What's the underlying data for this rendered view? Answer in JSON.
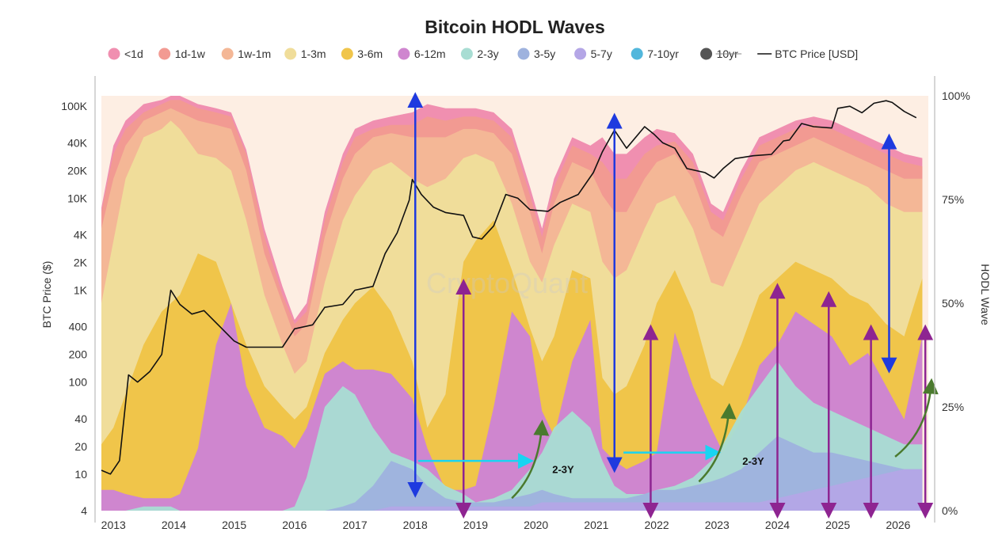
{
  "chart_data": {
    "type": "area",
    "title": "Bitcoin HODL Waves",
    "ylabel_left": "BTC Price ($)",
    "ylabel_right": "HODL Wave",
    "watermark": "CryptoQuant",
    "y_left_scale": "log",
    "y_left_range": [
      4,
      130000
    ],
    "y_right_range": [
      0,
      100
    ],
    "x_range": [
      2012.8,
      2026.5
    ],
    "grid": false,
    "legend_placement": "top",
    "x_ticks": [
      "2013",
      "2014",
      "2015",
      "2016",
      "2017",
      "2018",
      "2019",
      "2020",
      "2021",
      "2022",
      "2023",
      "2024",
      "2025",
      "2026"
    ],
    "x_tick_values": [
      2013,
      2014,
      2015,
      2016,
      2017,
      2018,
      2019,
      2020,
      2021,
      2022,
      2023,
      2024,
      2025,
      2026
    ],
    "y_left_ticks": [
      "100K",
      "40K",
      "20K",
      "10K",
      "4K",
      "2K",
      "1K",
      "400",
      "200",
      "100",
      "40",
      "20",
      "10",
      "4"
    ],
    "y_left_tick_values": [
      100000,
      40000,
      20000,
      10000,
      4000,
      2000,
      1000,
      400,
      200,
      100,
      40,
      20,
      10,
      4
    ],
    "y_right_ticks": [
      "100%",
      "75%",
      "50%",
      "25%",
      "0%"
    ],
    "y_right_tick_values": [
      100,
      75,
      50,
      25,
      0
    ],
    "legend": [
      {
        "label": "<1d",
        "color": "#f08fb0",
        "style": "normal"
      },
      {
        "label": "1d-1w",
        "color": "#f29a92",
        "style": "normal"
      },
      {
        "label": "1w-1m",
        "color": "#f4b796",
        "style": "normal"
      },
      {
        "label": "1-3m",
        "color": "#f0dd9a",
        "style": "normal"
      },
      {
        "label": "3-6m",
        "color": "#f0c54a",
        "style": "normal"
      },
      {
        "label": "6-12m",
        "color": "#cf86cf",
        "style": "normal"
      },
      {
        "label": "2-3y",
        "color": "#a8ddd3",
        "style": "normal"
      },
      {
        "label": "3-5y",
        "color": "#9eb2de",
        "style": "normal"
      },
      {
        "label": "5-7y",
        "color": "#b4a6e6",
        "style": "normal"
      },
      {
        "label": "7-10yr",
        "color": "#52b7dc",
        "style": "normal"
      },
      {
        "label": "10yr",
        "color": "#555555",
        "style": "strike"
      },
      {
        "label": "BTC Price [USD]",
        "color": "#111111",
        "style": "line"
      }
    ],
    "x": [
      2012.8,
      2013.0,
      2013.2,
      2013.5,
      2013.8,
      2013.95,
      2014.1,
      2014.4,
      2014.7,
      2014.95,
      2015.2,
      2015.5,
      2015.8,
      2016.0,
      2016.2,
      2016.5,
      2016.8,
      2017.0,
      2017.3,
      2017.6,
      2017.95,
      2018.2,
      2018.5,
      2018.8,
      2019.0,
      2019.3,
      2019.6,
      2019.9,
      2020.1,
      2020.3,
      2020.6,
      2020.9,
      2021.1,
      2021.3,
      2021.5,
      2021.8,
      2022.0,
      2022.3,
      2022.6,
      2022.9,
      2023.1,
      2023.4,
      2023.7,
      2024.0,
      2024.3,
      2024.6,
      2024.9,
      2025.2,
      2025.5,
      2025.8,
      2026.1,
      2026.4
    ],
    "series": [
      {
        "name": "6-12m",
        "color": "#cf86cf",
        "values": [
          5,
          5,
          4,
          3,
          3,
          3,
          4,
          15,
          40,
          50,
          30,
          20,
          18,
          15,
          20,
          33,
          36,
          34,
          34,
          33,
          27,
          15,
          5,
          5,
          6,
          25,
          48,
          42,
          24,
          18,
          36,
          46,
          15,
          12,
          10,
          12,
          14,
          43,
          30,
          20,
          14,
          22,
          35,
          40,
          48,
          45,
          42,
          35,
          38,
          30,
          22,
          42
        ]
      },
      {
        "name": "3-6m",
        "color": "#f0c54a",
        "values": [
          16,
          20,
          28,
          40,
          48,
          50,
          52,
          62,
          60,
          50,
          40,
          30,
          25,
          22,
          25,
          38,
          46,
          50,
          54,
          48,
          36,
          20,
          28,
          60,
          65,
          70,
          58,
          44,
          36,
          42,
          58,
          56,
          32,
          28,
          30,
          40,
          50,
          58,
          48,
          32,
          30,
          40,
          52,
          56,
          60,
          58,
          56,
          52,
          50,
          45,
          42,
          56
        ]
      },
      {
        "name": "1-3m",
        "color": "#f0dd9a",
        "values": [
          50,
          65,
          80,
          90,
          92,
          94,
          92,
          86,
          85,
          82,
          70,
          52,
          40,
          33,
          36,
          55,
          70,
          76,
          82,
          84,
          80,
          78,
          80,
          85,
          86,
          84,
          74,
          60,
          55,
          64,
          74,
          72,
          60,
          56,
          58,
          68,
          74,
          76,
          68,
          55,
          54,
          64,
          74,
          78,
          82,
          84,
          82,
          80,
          78,
          74,
          72,
          72
        ]
      },
      {
        "name": "1w-1m",
        "color": "#f4b796",
        "values": [
          68,
          80,
          88,
          94,
          96,
          97,
          96,
          94,
          93,
          92,
          82,
          62,
          50,
          42,
          45,
          66,
          80,
          86,
          90,
          91,
          90,
          90,
          90,
          92,
          92,
          91,
          86,
          72,
          62,
          74,
          84,
          82,
          76,
          72,
          72,
          80,
          84,
          86,
          80,
          68,
          66,
          76,
          84,
          86,
          88,
          90,
          88,
          86,
          84,
          82,
          80,
          80
        ]
      },
      {
        "name": "1d-1w",
        "color": "#f29a92",
        "values": [
          72,
          86,
          92,
          96,
          98,
          99,
          99,
          97,
          96,
          95,
          86,
          66,
          52,
          45,
          48,
          70,
          84,
          90,
          92,
          93,
          93,
          95,
          94,
          95,
          95,
          94,
          90,
          76,
          66,
          78,
          88,
          86,
          84,
          80,
          80,
          86,
          88,
          89,
          84,
          72,
          70,
          80,
          88,
          90,
          92,
          93,
          92,
          90,
          88,
          86,
          84,
          83
        ]
      },
      {
        "name": "<1d",
        "color": "#f08fb0",
        "values": [
          73,
          88,
          94,
          98,
          99,
          100,
          100,
          98,
          97,
          96,
          87,
          68,
          54,
          46,
          50,
          72,
          86,
          92,
          94,
          95,
          96,
          98,
          97,
          97,
          97,
          96,
          92,
          78,
          68,
          80,
          90,
          88,
          90,
          86,
          86,
          90,
          92,
          91,
          86,
          74,
          72,
          82,
          90,
          92,
          94,
          95,
          94,
          92,
          90,
          88,
          86,
          85
        ]
      }
    ],
    "background_series": [
      {
        "name": "2-3y",
        "color": "#a8ddd3",
        "values": [
          0,
          0,
          0,
          1,
          1,
          1,
          0,
          0,
          0,
          0,
          0,
          0,
          0,
          1,
          8,
          25,
          30,
          28,
          20,
          14,
          12,
          10,
          6,
          4,
          2,
          3,
          5,
          10,
          14,
          20,
          24,
          20,
          12,
          6,
          4,
          4,
          5,
          6,
          8,
          12,
          16,
          24,
          30,
          36,
          30,
          26,
          24,
          22,
          20,
          18,
          16,
          16
        ]
      },
      {
        "name": "3-5y",
        "color": "#9eb2de",
        "values": [
          0,
          0,
          0,
          0,
          0,
          0,
          0,
          0,
          0,
          0,
          0,
          0,
          0,
          0,
          0,
          0,
          1,
          2,
          6,
          12,
          10,
          6,
          3,
          2,
          2,
          2,
          3,
          4,
          5,
          4,
          3,
          3,
          3,
          3,
          3,
          4,
          5,
          5,
          6,
          7,
          8,
          10,
          14,
          18,
          16,
          14,
          14,
          13,
          12,
          11,
          10,
          10
        ]
      },
      {
        "name": "5-7y",
        "color": "#b4a6e6",
        "values": [
          0,
          0,
          0,
          0,
          0,
          0,
          0,
          0,
          0,
          0,
          0,
          0,
          0,
          0,
          0,
          0,
          0,
          0,
          0,
          1,
          1,
          1,
          1,
          1,
          1,
          1,
          1,
          1,
          2,
          2,
          2,
          2,
          2,
          2,
          2,
          2,
          2,
          2,
          2,
          2,
          2,
          2,
          2,
          3,
          4,
          5,
          6,
          7,
          8,
          9,
          10,
          10
        ]
      }
    ],
    "price": {
      "name": "BTC Price [USD]",
      "x": [
        2012.8,
        2012.95,
        2013.1,
        2013.25,
        2013.4,
        2013.6,
        2013.8,
        2013.9,
        2013.95,
        2014.1,
        2014.3,
        2014.5,
        2014.8,
        2015.0,
        2015.2,
        2015.5,
        2015.8,
        2016.0,
        2016.3,
        2016.5,
        2016.8,
        2017.0,
        2017.3,
        2017.5,
        2017.7,
        2017.9,
        2017.95,
        2018.1,
        2018.3,
        2018.5,
        2018.8,
        2018.95,
        2019.1,
        2019.3,
        2019.5,
        2019.7,
        2019.9,
        2020.2,
        2020.4,
        2020.7,
        2020.95,
        2021.1,
        2021.3,
        2021.5,
        2021.8,
        2021.95,
        2022.1,
        2022.3,
        2022.5,
        2022.8,
        2022.95,
        2023.1,
        2023.3,
        2023.6,
        2023.9,
        2024.1,
        2024.2,
        2024.4,
        2024.6,
        2024.9,
        2025.0,
        2025.2,
        2025.4,
        2025.6,
        2025.8,
        2025.9,
        2026.1,
        2026.3
      ],
      "y": [
        11,
        10,
        14,
        120,
        100,
        130,
        200,
        600,
        1000,
        700,
        550,
        600,
        380,
        280,
        240,
        240,
        240,
        380,
        420,
        650,
        700,
        1000,
        1100,
        2500,
        4200,
        9500,
        16000,
        11000,
        8000,
        7000,
        6500,
        3800,
        3600,
        5000,
        11000,
        10000,
        7500,
        7200,
        9000,
        11000,
        19000,
        32000,
        55000,
        35000,
        60000,
        50000,
        40000,
        35000,
        21000,
        19000,
        16600,
        21000,
        27000,
        29000,
        30000,
        42000,
        43000,
        65000,
        60000,
        58000,
        95000,
        100000,
        85000,
        108000,
        115000,
        110000,
        88000,
        75000
      ]
    },
    "annotations": [
      {
        "text": "2-3Y",
        "x": 2020.45,
        "y_pct": 10
      },
      {
        "text": "2-3Y",
        "x": 2023.6,
        "y_pct": 12
      }
    ],
    "arrows": [
      {
        "type": "double",
        "color": "#1e3adf",
        "x": 2018.0,
        "from_pct": 5,
        "to_pct": 99
      },
      {
        "type": "double",
        "color": "#1e3adf",
        "x": 2021.3,
        "from_pct": 11,
        "to_pct": 94
      },
      {
        "type": "double",
        "color": "#1e3adf",
        "x": 2025.85,
        "from_pct": 35,
        "to_pct": 89
      },
      {
        "type": "double",
        "color": "#8e2491",
        "x": 2018.8,
        "from_pct": 0,
        "to_pct": 54
      },
      {
        "type": "double",
        "color": "#8e2491",
        "x": 2021.9,
        "from_pct": 0,
        "to_pct": 43
      },
      {
        "type": "double",
        "color": "#8e2491",
        "x": 2024.0,
        "from_pct": 0,
        "to_pct": 53
      },
      {
        "type": "double",
        "color": "#8e2491",
        "x": 2024.85,
        "from_pct": 0,
        "to_pct": 51
      },
      {
        "type": "double",
        "color": "#8e2491",
        "x": 2025.55,
        "from_pct": 0,
        "to_pct": 43
      },
      {
        "type": "double",
        "color": "#8e2491",
        "x": 2026.45,
        "from_pct": 0,
        "to_pct": 43
      },
      {
        "type": "single",
        "color": "#19d4f2",
        "x1": 2018.05,
        "x2": 2019.9,
        "pct": 12
      },
      {
        "type": "single",
        "color": "#19d4f2",
        "x1": 2021.45,
        "x2": 2023.0,
        "pct": 14
      },
      {
        "type": "curve",
        "color": "#4a7a2e",
        "x1": 2019.6,
        "x2": 2020.1,
        "from_pct": 3,
        "to_pct": 21
      },
      {
        "type": "curve",
        "color": "#4a7a2e",
        "x1": 2022.7,
        "x2": 2023.2,
        "from_pct": 7,
        "to_pct": 25
      },
      {
        "type": "curve",
        "color": "#4a7a2e",
        "x1": 2025.95,
        "x2": 2026.55,
        "from_pct": 13,
        "to_pct": 31
      }
    ]
  }
}
